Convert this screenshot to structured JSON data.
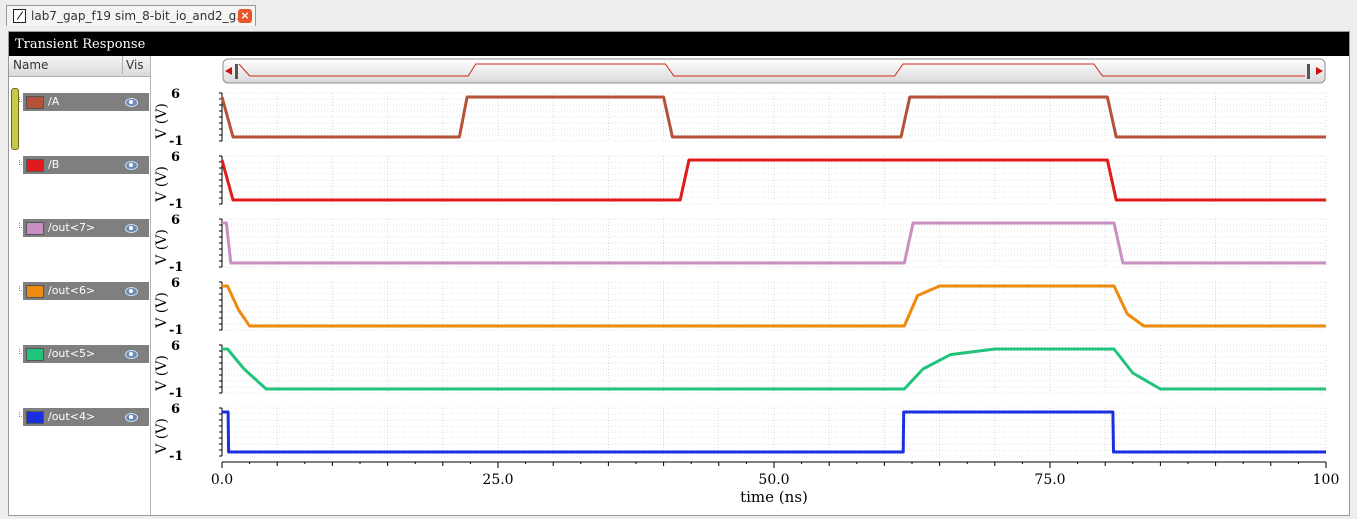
{
  "tab": {
    "title": "lab7_gap_f19 sim_8-bit_io_and2_g...",
    "close_label": "×"
  },
  "window": {
    "title": "Transient Response"
  },
  "legend_header": {
    "name": "Name",
    "vis": "Vis"
  },
  "signals": [
    {
      "name": "/A",
      "color": "#b5523a"
    },
    {
      "name": "/B",
      "color": "#e01b1b"
    },
    {
      "name": "/out<7>",
      "color": "#c98fc2"
    },
    {
      "name": "/out<6>",
      "color": "#ee8a0c"
    },
    {
      "name": "/out<5>",
      "color": "#22c37a"
    },
    {
      "name": "/out<4>",
      "color": "#1a2fe0"
    }
  ],
  "axis": {
    "ylabel": "V (V)",
    "ymax_label": "6",
    "ymin_label": "-1",
    "xlabel": "time (ns)",
    "xticks": [
      "0.0",
      "25.0",
      "50.0",
      "75.0",
      "100"
    ]
  },
  "chart_data": {
    "type": "line",
    "xlabel": "time (ns)",
    "ylabel": "V (V)",
    "xlim": [
      0,
      100
    ],
    "ylim": [
      -1,
      6
    ],
    "grid": true,
    "series": [
      {
        "name": "/A",
        "color": "#b5523a",
        "x": [
          0,
          1,
          21.5,
          22.2,
          40,
          40.8,
          61.5,
          62.3,
          80.2,
          81
        ],
        "y": [
          5,
          0,
          0,
          5,
          5,
          0,
          0,
          5,
          5,
          0
        ]
      },
      {
        "name": "/B",
        "color": "#e01b1b",
        "x": [
          0,
          1,
          41.5,
          42.3,
          80.2,
          81
        ],
        "y": [
          5,
          0,
          0,
          5,
          5,
          0
        ]
      },
      {
        "name": "/out<7>",
        "color": "#c98fc2",
        "x": [
          0,
          0.4,
          0.8,
          61.8,
          62.6,
          80.8,
          81.6
        ],
        "y": [
          5,
          5,
          0,
          0,
          5,
          5,
          0
        ]
      },
      {
        "name": "/out<6>",
        "color": "#ee8a0c",
        "x": [
          0,
          0.5,
          1.5,
          2.5,
          61.8,
          63,
          65,
          80.8,
          82,
          83.5
        ],
        "y": [
          5,
          5,
          2,
          0,
          0,
          3.8,
          5,
          5,
          1.5,
          0
        ]
      },
      {
        "name": "/out<5>",
        "color": "#22c37a",
        "x": [
          0,
          0.5,
          2,
          4,
          61.8,
          63.5,
          66,
          70,
          80.8,
          82.5,
          85
        ],
        "y": [
          5,
          5,
          2.5,
          0,
          0,
          2.5,
          4.3,
          5,
          5,
          2,
          0
        ]
      },
      {
        "name": "/out<4>",
        "color": "#1a2fe0",
        "x": [
          0,
          0.55,
          0.6,
          61.7,
          61.75,
          80.7,
          80.75
        ],
        "y": [
          5,
          5,
          0,
          0,
          5,
          5,
          0
        ]
      }
    ]
  }
}
